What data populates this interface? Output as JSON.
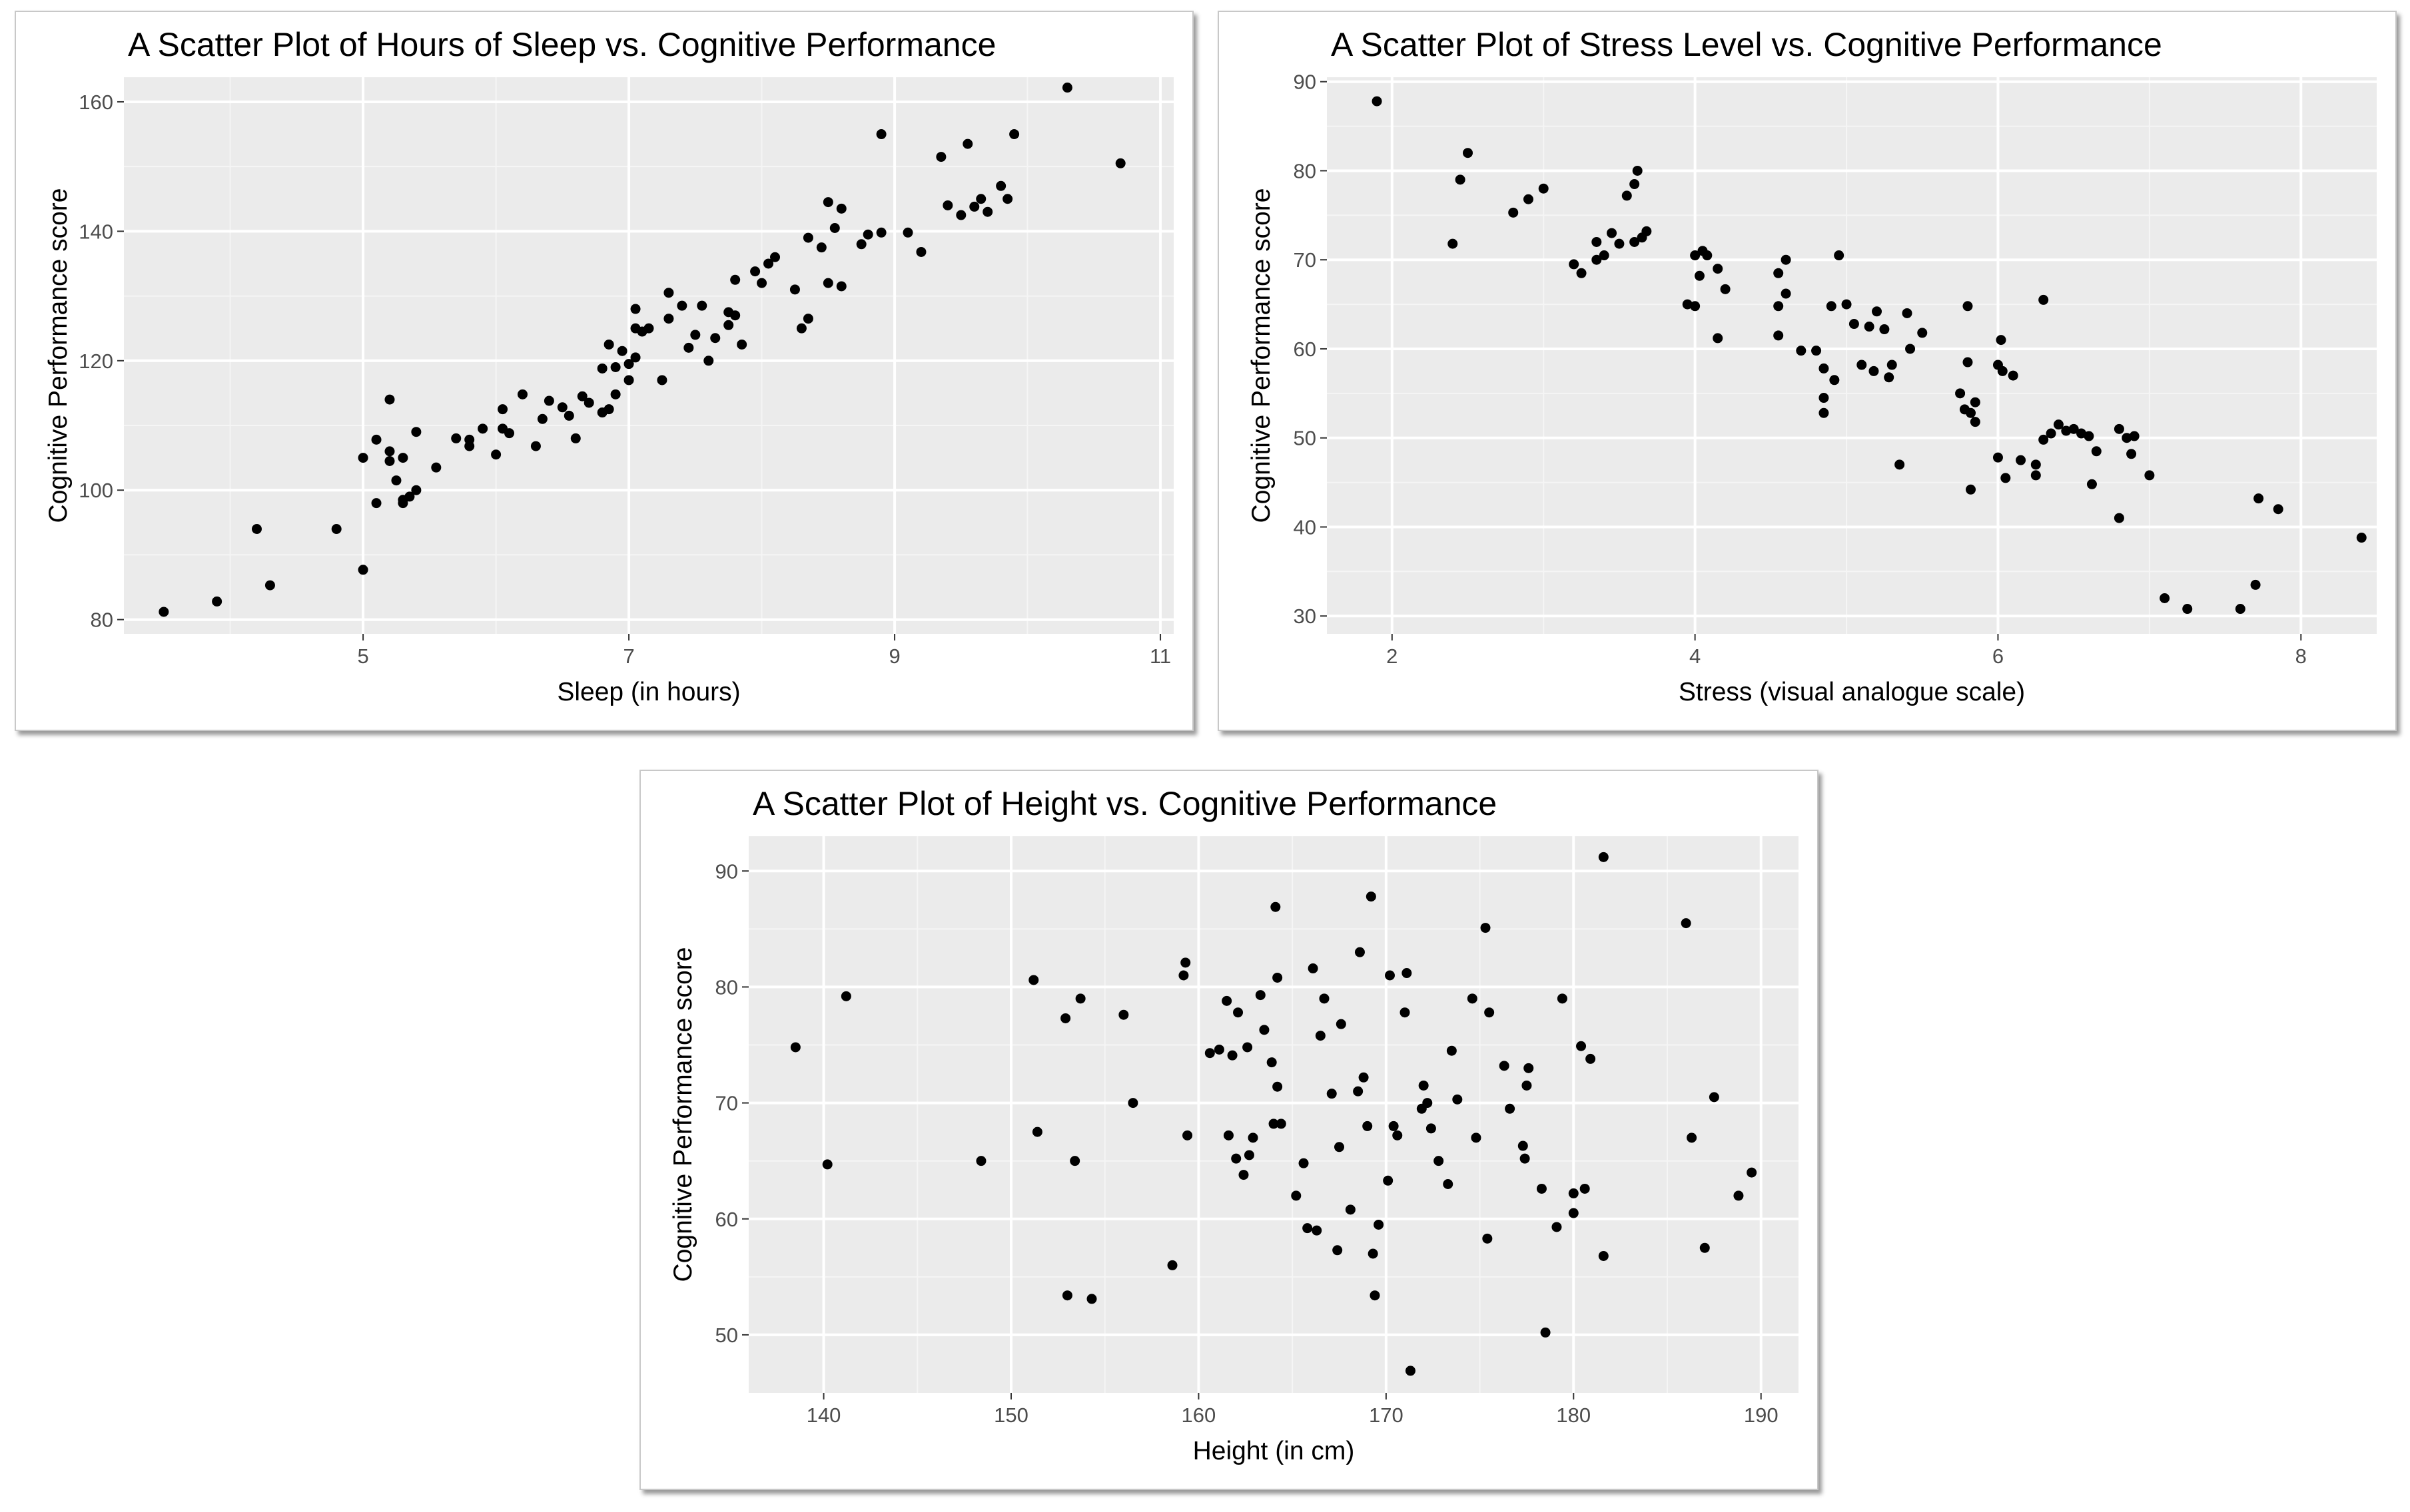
{
  "colors": {
    "panel_bg": "#EBEBEB",
    "grid_major": "#FFFFFF",
    "grid_minor": "#F5F5F5",
    "point": "#000000",
    "tick_text": "#4D4D4D"
  },
  "chart_data": [
    {
      "type": "scatter",
      "title": "A Scatter Plot of Hours of Sleep vs. Cognitive Performance",
      "xlabel": "Sleep (in hours)",
      "ylabel": "Cognitive Performance score",
      "xlim": [
        3.2,
        11.1
      ],
      "ylim": [
        77.8,
        163.8
      ],
      "xticks": [
        5,
        7,
        9,
        11
      ],
      "yticks": [
        80,
        100,
        120,
        140,
        160
      ],
      "xminor": [
        4,
        6,
        8,
        10
      ],
      "yminor": [
        90,
        110,
        130,
        150
      ],
      "grid": true,
      "points": [
        [
          3.5,
          81.2
        ],
        [
          3.9,
          82.8
        ],
        [
          4.2,
          94.0
        ],
        [
          4.3,
          85.3
        ],
        [
          4.8,
          94.0
        ],
        [
          5.0,
          87.7
        ],
        [
          5.0,
          105.0
        ],
        [
          5.1,
          98.0
        ],
        [
          5.1,
          107.8
        ],
        [
          5.2,
          114.0
        ],
        [
          5.2,
          106.0
        ],
        [
          5.2,
          104.5
        ],
        [
          5.25,
          101.5
        ],
        [
          5.3,
          98.0
        ],
        [
          5.3,
          98.5
        ],
        [
          5.35,
          99.0
        ],
        [
          5.4,
          100.0
        ],
        [
          5.3,
          105.0
        ],
        [
          5.4,
          109.0
        ],
        [
          5.55,
          103.5
        ],
        [
          5.7,
          108.0
        ],
        [
          5.8,
          106.8
        ],
        [
          5.8,
          107.8
        ],
        [
          5.9,
          109.5
        ],
        [
          6.0,
          105.5
        ],
        [
          6.05,
          112.5
        ],
        [
          6.05,
          109.5
        ],
        [
          6.1,
          108.8
        ],
        [
          6.2,
          114.8
        ],
        [
          6.3,
          106.8
        ],
        [
          6.35,
          111.0
        ],
        [
          6.4,
          113.8
        ],
        [
          6.5,
          112.8
        ],
        [
          6.55,
          111.5
        ],
        [
          6.6,
          108.0
        ],
        [
          6.65,
          114.5
        ],
        [
          6.7,
          113.5
        ],
        [
          6.8,
          112.0
        ],
        [
          6.8,
          118.8
        ],
        [
          6.85,
          122.5
        ],
        [
          6.85,
          112.5
        ],
        [
          6.9,
          114.8
        ],
        [
          6.9,
          119.0
        ],
        [
          6.95,
          121.5
        ],
        [
          7.0,
          117.0
        ],
        [
          7.0,
          119.5
        ],
        [
          7.05,
          120.5
        ],
        [
          7.05,
          125.0
        ],
        [
          7.05,
          128.0
        ],
        [
          7.1,
          124.5
        ],
        [
          7.15,
          125.0
        ],
        [
          7.25,
          117.0
        ],
        [
          7.3,
          126.5
        ],
        [
          7.3,
          130.5
        ],
        [
          7.4,
          128.5
        ],
        [
          7.45,
          122.0
        ],
        [
          7.5,
          124.0
        ],
        [
          7.55,
          128.5
        ],
        [
          7.6,
          120.0
        ],
        [
          7.65,
          123.5
        ],
        [
          7.75,
          125.5
        ],
        [
          7.75,
          127.5
        ],
        [
          7.8,
          127.0
        ],
        [
          7.8,
          132.5
        ],
        [
          7.85,
          122.5
        ],
        [
          7.95,
          133.8
        ],
        [
          8.0,
          132.0
        ],
        [
          8.05,
          135.0
        ],
        [
          8.1,
          136.0
        ],
        [
          8.25,
          131.0
        ],
        [
          8.3,
          125.0
        ],
        [
          8.35,
          126.5
        ],
        [
          8.35,
          139.0
        ],
        [
          8.45,
          137.5
        ],
        [
          8.5,
          132.0
        ],
        [
          8.5,
          144.5
        ],
        [
          8.55,
          140.5
        ],
        [
          8.6,
          131.5
        ],
        [
          8.6,
          143.5
        ],
        [
          8.75,
          138.0
        ],
        [
          8.8,
          139.5
        ],
        [
          8.9,
          139.8
        ],
        [
          8.9,
          155.0
        ],
        [
          9.1,
          139.8
        ],
        [
          9.2,
          136.8
        ],
        [
          9.35,
          151.5
        ],
        [
          9.4,
          144.0
        ],
        [
          9.5,
          142.5
        ],
        [
          9.55,
          153.5
        ],
        [
          9.6,
          143.8
        ],
        [
          9.65,
          145.0
        ],
        [
          9.7,
          143.0
        ],
        [
          9.8,
          147.0
        ],
        [
          9.85,
          145.0
        ],
        [
          9.9,
          155.0
        ],
        [
          10.3,
          162.2
        ],
        [
          10.7,
          150.5
        ]
      ]
    },
    {
      "type": "scatter",
      "title": "A Scatter Plot of Stress Level vs. Cognitive Performance",
      "xlabel": "Stress (visual analogue scale)",
      "ylabel": "Cognitive Performance score",
      "xlim": [
        1.57,
        8.5
      ],
      "ylim": [
        28.0,
        90.5
      ],
      "xticks": [
        2,
        4,
        6,
        8
      ],
      "yticks": [
        30,
        40,
        50,
        60,
        70,
        80,
        90
      ],
      "xminor": [
        3,
        5,
        7
      ],
      "yminor": [
        35,
        45,
        55,
        65,
        75,
        85
      ],
      "grid": true,
      "points": [
        [
          1.9,
          87.8
        ],
        [
          2.4,
          71.8
        ],
        [
          2.45,
          79.0
        ],
        [
          2.5,
          82.0
        ],
        [
          2.8,
          75.3
        ],
        [
          2.9,
          76.8
        ],
        [
          3.0,
          78.0
        ],
        [
          3.2,
          69.5
        ],
        [
          3.25,
          68.5
        ],
        [
          3.35,
          72.0
        ],
        [
          3.35,
          70.0
        ],
        [
          3.4,
          70.5
        ],
        [
          3.45,
          73.0
        ],
        [
          3.5,
          71.8
        ],
        [
          3.55,
          77.2
        ],
        [
          3.6,
          72.0
        ],
        [
          3.6,
          78.5
        ],
        [
          3.62,
          80.0
        ],
        [
          3.65,
          72.5
        ],
        [
          3.68,
          73.2
        ],
        [
          3.95,
          65.0
        ],
        [
          4.0,
          64.8
        ],
        [
          4.0,
          70.5
        ],
        [
          4.03,
          68.2
        ],
        [
          4.05,
          71.0
        ],
        [
          4.08,
          70.5
        ],
        [
          4.15,
          61.2
        ],
        [
          4.15,
          69.0
        ],
        [
          4.2,
          66.7
        ],
        [
          4.55,
          68.5
        ],
        [
          4.55,
          61.5
        ],
        [
          4.55,
          64.8
        ],
        [
          4.6,
          66.2
        ],
        [
          4.6,
          70.0
        ],
        [
          4.7,
          59.8
        ],
        [
          4.8,
          59.8
        ],
        [
          4.85,
          57.8
        ],
        [
          4.85,
          54.5
        ],
        [
          4.85,
          52.8
        ],
        [
          4.9,
          64.8
        ],
        [
          4.92,
          56.5
        ],
        [
          4.95,
          70.5
        ],
        [
          5.0,
          65.0
        ],
        [
          5.05,
          62.8
        ],
        [
          5.1,
          58.2
        ],
        [
          5.15,
          62.5
        ],
        [
          5.18,
          57.5
        ],
        [
          5.2,
          64.2
        ],
        [
          5.25,
          62.2
        ],
        [
          5.28,
          56.8
        ],
        [
          5.3,
          58.2
        ],
        [
          5.35,
          47.0
        ],
        [
          5.4,
          64.0
        ],
        [
          5.42,
          60.0
        ],
        [
          5.5,
          61.8
        ],
        [
          5.75,
          55.0
        ],
        [
          5.78,
          53.2
        ],
        [
          5.8,
          64.8
        ],
        [
          5.8,
          58.5
        ],
        [
          5.82,
          52.8
        ],
        [
          5.82,
          44.2
        ],
        [
          5.85,
          51.8
        ],
        [
          5.85,
          54.0
        ],
        [
          6.0,
          47.8
        ],
        [
          6.0,
          58.2
        ],
        [
          6.02,
          61.0
        ],
        [
          6.03,
          57.5
        ],
        [
          6.05,
          45.5
        ],
        [
          6.1,
          57.0
        ],
        [
          6.15,
          47.5
        ],
        [
          6.25,
          45.8
        ],
        [
          6.25,
          47.0
        ],
        [
          6.3,
          49.8
        ],
        [
          6.3,
          65.5
        ],
        [
          6.35,
          50.5
        ],
        [
          6.4,
          51.5
        ],
        [
          6.45,
          50.8
        ],
        [
          6.5,
          51.0
        ],
        [
          6.55,
          50.5
        ],
        [
          6.6,
          50.2
        ],
        [
          6.62,
          44.8
        ],
        [
          6.65,
          48.5
        ],
        [
          6.8,
          41.0
        ],
        [
          6.8,
          51.0
        ],
        [
          6.85,
          50.0
        ],
        [
          6.88,
          48.2
        ],
        [
          6.9,
          50.2
        ],
        [
          7.0,
          45.8
        ],
        [
          7.1,
          32.0
        ],
        [
          7.25,
          30.8
        ],
        [
          7.6,
          30.8
        ],
        [
          7.7,
          33.5
        ],
        [
          7.72,
          43.2
        ],
        [
          7.85,
          42.0
        ],
        [
          8.4,
          38.8
        ]
      ]
    },
    {
      "type": "scatter",
      "title": "A Scatter Plot of Height vs. Cognitive Performance",
      "xlabel": "Height (in cm)",
      "ylabel": "Cognitive Performance score",
      "xlim": [
        136.0,
        192.0
      ],
      "ylim": [
        45.0,
        93.0
      ],
      "xticks": [
        140,
        150,
        160,
        170,
        180,
        190
      ],
      "yticks": [
        50,
        60,
        70,
        80,
        90
      ],
      "xminor": [
        145,
        155,
        165,
        175,
        185
      ],
      "yminor": [
        55,
        65,
        75,
        85
      ],
      "grid": true,
      "points": [
        [
          138.5,
          74.8
        ],
        [
          140.2,
          64.7
        ],
        [
          141.2,
          79.2
        ],
        [
          148.4,
          65.0
        ],
        [
          151.2,
          80.6
        ],
        [
          151.4,
          67.5
        ],
        [
          152.9,
          77.3
        ],
        [
          153.0,
          53.4
        ],
        [
          153.4,
          65.0
        ],
        [
          153.7,
          79.0
        ],
        [
          154.3,
          53.1
        ],
        [
          156.0,
          77.6
        ],
        [
          156.5,
          70.0
        ],
        [
          158.6,
          56.0
        ],
        [
          159.2,
          81.0
        ],
        [
          159.3,
          82.1
        ],
        [
          159.4,
          67.2
        ],
        [
          160.6,
          74.3
        ],
        [
          161.1,
          74.6
        ],
        [
          161.5,
          78.8
        ],
        [
          161.6,
          67.2
        ],
        [
          161.8,
          74.1
        ],
        [
          162.0,
          65.2
        ],
        [
          162.1,
          77.8
        ],
        [
          162.4,
          63.8
        ],
        [
          162.6,
          74.8
        ],
        [
          162.7,
          65.5
        ],
        [
          162.9,
          67.0
        ],
        [
          163.3,
          79.3
        ],
        [
          163.5,
          76.3
        ],
        [
          163.9,
          73.5
        ],
        [
          164.0,
          68.2
        ],
        [
          164.1,
          86.9
        ],
        [
          164.2,
          80.8
        ],
        [
          164.2,
          71.4
        ],
        [
          164.4,
          68.2
        ],
        [
          165.2,
          62.0
        ],
        [
          165.6,
          64.8
        ],
        [
          165.8,
          59.2
        ],
        [
          166.1,
          81.6
        ],
        [
          166.3,
          59.0
        ],
        [
          166.5,
          75.8
        ],
        [
          166.7,
          79.0
        ],
        [
          167.1,
          70.8
        ],
        [
          167.4,
          57.3
        ],
        [
          167.5,
          66.2
        ],
        [
          167.6,
          76.8
        ],
        [
          168.1,
          60.8
        ],
        [
          168.5,
          71.0
        ],
        [
          168.6,
          83.0
        ],
        [
          168.8,
          72.2
        ],
        [
          169.0,
          68.0
        ],
        [
          169.2,
          87.8
        ],
        [
          169.3,
          57.0
        ],
        [
          169.4,
          53.4
        ],
        [
          169.6,
          59.5
        ],
        [
          170.1,
          63.3
        ],
        [
          170.2,
          81.0
        ],
        [
          170.4,
          68.0
        ],
        [
          170.6,
          67.2
        ],
        [
          171.0,
          77.8
        ],
        [
          171.1,
          81.2
        ],
        [
          171.3,
          46.9
        ],
        [
          171.9,
          69.5
        ],
        [
          172.0,
          71.5
        ],
        [
          172.2,
          70.0
        ],
        [
          172.4,
          67.8
        ],
        [
          172.8,
          65.0
        ],
        [
          173.3,
          63.0
        ],
        [
          173.5,
          74.5
        ],
        [
          173.8,
          70.3
        ],
        [
          174.6,
          79.0
        ],
        [
          174.8,
          67.0
        ],
        [
          175.3,
          85.1
        ],
        [
          175.4,
          58.3
        ],
        [
          175.5,
          77.8
        ],
        [
          176.3,
          73.2
        ],
        [
          176.6,
          69.5
        ],
        [
          177.3,
          66.3
        ],
        [
          177.4,
          65.2
        ],
        [
          177.5,
          71.5
        ],
        [
          177.6,
          73.0
        ],
        [
          178.3,
          62.6
        ],
        [
          178.5,
          50.2
        ],
        [
          179.1,
          59.3
        ],
        [
          179.4,
          79.0
        ],
        [
          180.0,
          62.2
        ],
        [
          180.0,
          60.5
        ],
        [
          180.4,
          74.9
        ],
        [
          180.6,
          62.6
        ],
        [
          180.9,
          73.8
        ],
        [
          181.6,
          56.8
        ],
        [
          181.6,
          91.2
        ],
        [
          186.0,
          85.5
        ],
        [
          186.3,
          67.0
        ],
        [
          187.0,
          57.5
        ],
        [
          187.5,
          70.5
        ],
        [
          188.8,
          62.0
        ],
        [
          189.5,
          64.0
        ]
      ]
    }
  ]
}
